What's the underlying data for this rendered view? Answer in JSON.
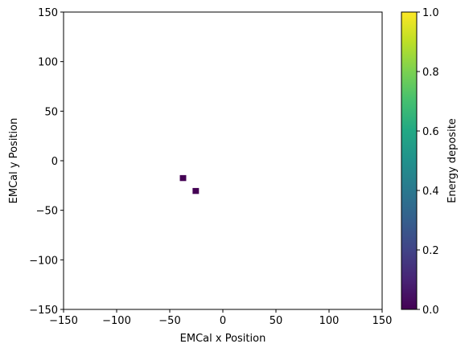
{
  "chart_data": {
    "type": "heatmap",
    "xlabel": "EMCal x Position",
    "ylabel": "EMCal y Position",
    "xlim": [
      -150,
      150
    ],
    "ylim": [
      -150,
      150
    ],
    "xticks": [
      -150,
      -100,
      -50,
      0,
      50,
      100,
      150
    ],
    "yticks": [
      -150,
      -100,
      -50,
      0,
      50,
      100,
      150
    ],
    "xtick_labels": [
      "−150",
      "−100",
      "−50",
      "0",
      "50",
      "100",
      "150"
    ],
    "ytick_labels": [
      "−150",
      "−100",
      "−50",
      "0",
      "50",
      "100",
      "150"
    ],
    "colorbar": {
      "label": "Energy deposite",
      "range": [
        0,
        1
      ],
      "ticks": [
        0,
        0.2,
        0.4,
        0.6,
        0.8,
        1
      ],
      "tick_labels": [
        "0.0",
        "0.2",
        "0.4",
        "0.6",
        "0.8",
        "1.0"
      ],
      "colormap": "viridis"
    },
    "cell_size": 6,
    "cells": [
      {
        "x": -37.5,
        "y": -17.5,
        "value": 0
      },
      {
        "x": -25.5,
        "y": -30.5,
        "value": 0
      }
    ],
    "grid": false
  }
}
